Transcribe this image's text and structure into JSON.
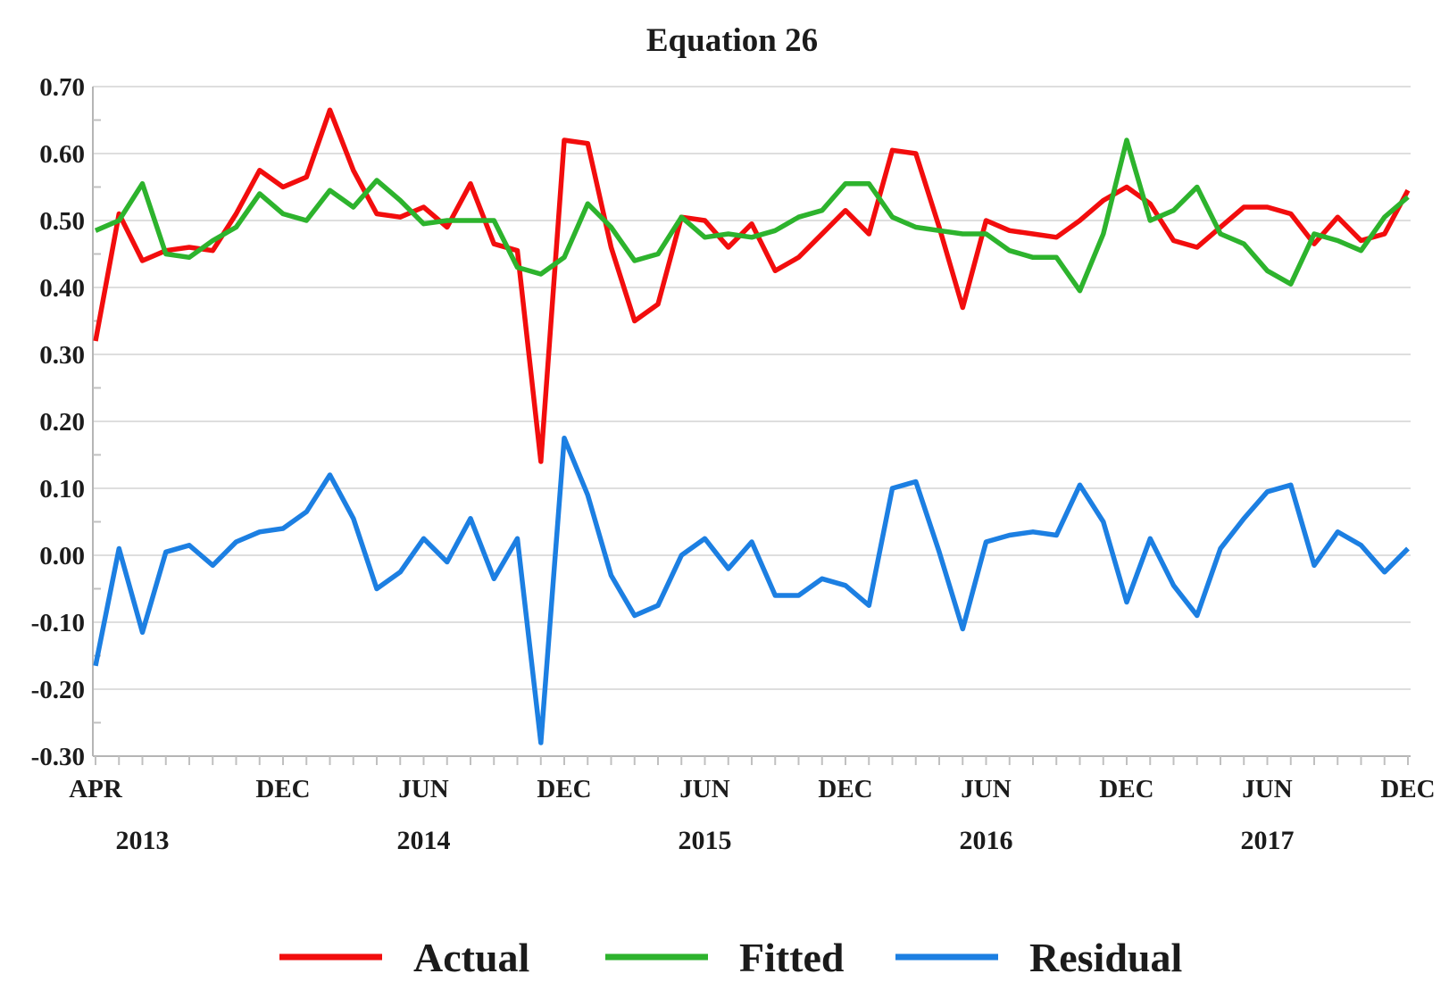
{
  "title": "Equation 26",
  "legend": [
    {
      "label": "Actual",
      "color": "#F20D0D"
    },
    {
      "label": "Fitted",
      "color": "#2DB32D"
    },
    {
      "label": "Residual",
      "color": "#1C7FE2"
    }
  ],
  "colors": {
    "actual": "#F20D0D",
    "fitted": "#2DB32D",
    "residual": "#1C7FE2",
    "gridline": "#dedede",
    "axis": "#b5b5b5"
  },
  "chart_data": {
    "type": "line",
    "title": "Equation 26",
    "xlabel": "",
    "ylabel": "",
    "x_start": "2013-04",
    "x_end": "2017-12",
    "x_frequency": "monthly",
    "n_points": 57,
    "ylim": [
      -0.3,
      0.7
    ],
    "grid": "horizontal",
    "legend_position": "bottom",
    "y_tick_labels": [
      "0.70",
      "0.60",
      "0.50",
      "0.40",
      "0.30",
      "0.20",
      "0.10",
      "0.00",
      "-0.10",
      "-0.20",
      "-0.30"
    ],
    "y_tick_values": [
      0.7,
      0.6,
      0.5,
      0.4,
      0.3,
      0.2,
      0.1,
      0.0,
      -0.1,
      -0.2,
      -0.3
    ],
    "x_tick_labels": [
      {
        "label": "APR",
        "month_index": 0
      },
      {
        "label": "DEC",
        "month_index": 8
      },
      {
        "label": "JUN",
        "month_index": 14
      },
      {
        "label": "DEC",
        "month_index": 20
      },
      {
        "label": "JUN",
        "month_index": 26
      },
      {
        "label": "DEC",
        "month_index": 32
      },
      {
        "label": "JUN",
        "month_index": 38
      },
      {
        "label": "DEC",
        "month_index": 44
      },
      {
        "label": "JUN",
        "month_index": 50
      },
      {
        "label": "DEC",
        "month_index": 56
      }
    ],
    "year_labels": [
      {
        "label": "2013",
        "month_index": 2
      },
      {
        "label": "2014",
        "month_index": 14
      },
      {
        "label": "2015",
        "month_index": 26
      },
      {
        "label": "2016",
        "month_index": 38
      },
      {
        "label": "2017",
        "month_index": 50
      }
    ],
    "series": [
      {
        "name": "Actual",
        "color": "#F20D0D",
        "values": [
          0.32,
          0.51,
          0.44,
          0.455,
          0.46,
          0.455,
          0.51,
          0.575,
          0.55,
          0.565,
          0.665,
          0.575,
          0.51,
          0.505,
          0.52,
          0.49,
          0.555,
          0.465,
          0.455,
          0.14,
          0.62,
          0.615,
          0.46,
          0.35,
          0.375,
          0.505,
          0.5,
          0.46,
          0.495,
          0.425,
          0.445,
          0.48,
          0.515,
          0.48,
          0.605,
          0.6,
          0.49,
          0.37,
          0.5,
          0.485,
          0.48,
          0.475,
          0.5,
          0.53,
          0.55,
          0.525,
          0.47,
          0.46,
          0.49,
          0.52,
          0.52,
          0.51,
          0.465,
          0.505,
          0.47,
          0.48,
          0.545
        ]
      },
      {
        "name": "Fitted",
        "color": "#2DB32D",
        "values": [
          0.485,
          0.5,
          0.555,
          0.45,
          0.445,
          0.47,
          0.49,
          0.54,
          0.51,
          0.5,
          0.545,
          0.52,
          0.56,
          0.53,
          0.495,
          0.5,
          0.5,
          0.5,
          0.43,
          0.42,
          0.445,
          0.525,
          0.49,
          0.44,
          0.45,
          0.505,
          0.475,
          0.48,
          0.475,
          0.485,
          0.505,
          0.515,
          0.555,
          0.555,
          0.505,
          0.49,
          0.485,
          0.48,
          0.48,
          0.455,
          0.445,
          0.445,
          0.395,
          0.48,
          0.62,
          0.5,
          0.515,
          0.55,
          0.48,
          0.465,
          0.425,
          0.405,
          0.48,
          0.47,
          0.455,
          0.505,
          0.535
        ]
      },
      {
        "name": "Residual",
        "color": "#1C7FE2",
        "values": [
          -0.165,
          0.01,
          -0.115,
          0.005,
          0.015,
          -0.015,
          0.02,
          0.035,
          0.04,
          0.065,
          0.12,
          0.055,
          -0.05,
          -0.025,
          0.025,
          -0.01,
          0.055,
          -0.035,
          0.025,
          -0.28,
          0.175,
          0.09,
          -0.03,
          -0.09,
          -0.075,
          0.0,
          0.025,
          -0.02,
          0.02,
          -0.06,
          -0.06,
          -0.035,
          -0.045,
          -0.075,
          0.1,
          0.11,
          0.005,
          -0.11,
          0.02,
          0.03,
          0.035,
          0.03,
          0.105,
          0.05,
          -0.07,
          0.025,
          -0.045,
          -0.09,
          0.01,
          0.055,
          0.095,
          0.105,
          -0.015,
          0.035,
          0.015,
          -0.025,
          0.01
        ]
      }
    ]
  }
}
